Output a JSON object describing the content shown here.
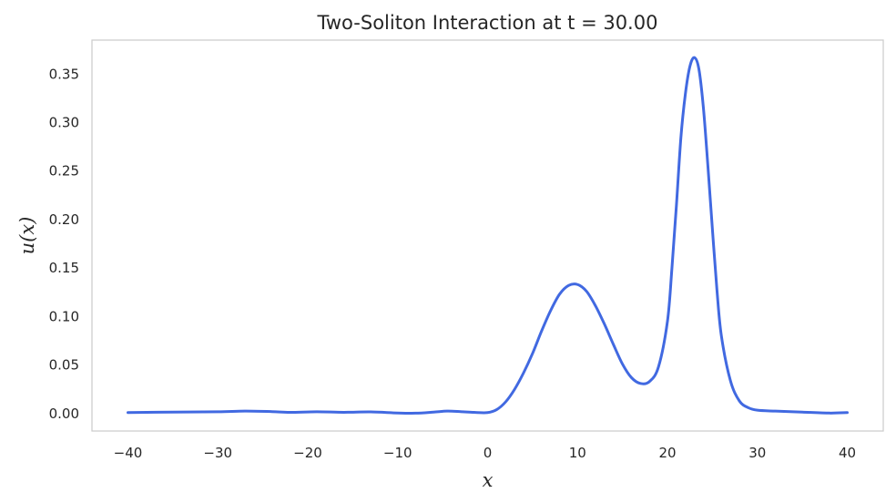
{
  "chart_data": {
    "type": "line",
    "title": "Two-Soliton Interaction at t = 30.00",
    "xlabel": "x",
    "ylabel": "u(x)",
    "xlim": [
      -44,
      44
    ],
    "ylim": [
      -0.018,
      0.385
    ],
    "grid": false,
    "x_ticks": [
      -40,
      -30,
      -20,
      -10,
      0,
      10,
      20,
      30,
      40
    ],
    "x_tick_labels": [
      "−40",
      "−30",
      "−20",
      "−10",
      "0",
      "10",
      "20",
      "30",
      "40"
    ],
    "y_ticks": [
      0.0,
      0.05,
      0.1,
      0.15,
      0.2,
      0.25,
      0.3,
      0.35
    ],
    "y_tick_labels": [
      "0.00",
      "0.05",
      "0.10",
      "0.15",
      "0.20",
      "0.25",
      "0.30",
      "0.35"
    ],
    "series": [
      {
        "color": "#4169e1",
        "x": [
          -40,
          -35,
          -30,
          -27,
          -24,
          -22,
          -19,
          -16,
          -13,
          -10,
          -8,
          -6,
          -4.5,
          -3,
          -1.5,
          0,
          1,
          2,
          3,
          4,
          5,
          6,
          7,
          8,
          9,
          10,
          11,
          12,
          13,
          14,
          15,
          16,
          17,
          18,
          19,
          20,
          20.5,
          21,
          21.5,
          22,
          22.5,
          23,
          23.5,
          24,
          24.5,
          25,
          25.5,
          26,
          27,
          28,
          29,
          30,
          32,
          35,
          38,
          40
        ],
        "y": [
          0.001,
          0.0015,
          0.0018,
          0.0025,
          0.002,
          0.0012,
          0.0018,
          0.0013,
          0.0017,
          0.0006,
          0.0004,
          0.0015,
          0.0025,
          0.002,
          0.0012,
          0.001,
          0.004,
          0.012,
          0.025,
          0.042,
          0.062,
          0.085,
          0.106,
          0.123,
          0.132,
          0.133,
          0.126,
          0.111,
          0.092,
          0.071,
          0.051,
          0.037,
          0.031,
          0.033,
          0.048,
          0.095,
          0.15,
          0.215,
          0.285,
          0.33,
          0.358,
          0.367,
          0.355,
          0.315,
          0.255,
          0.19,
          0.128,
          0.08,
          0.034,
          0.013,
          0.006,
          0.0035,
          0.0025,
          0.0015,
          0.0005,
          0.001
        ]
      }
    ]
  }
}
